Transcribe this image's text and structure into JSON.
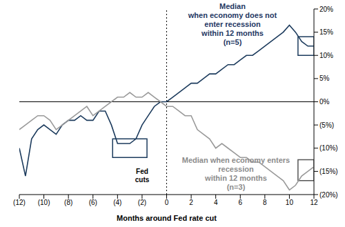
{
  "chart_data": {
    "type": "line",
    "x_label": "Months around Fed rate cut",
    "x": [
      -12,
      -11.5,
      -11,
      -10.5,
      -10,
      -9.5,
      -9,
      -8.5,
      -8,
      -7.5,
      -7,
      -6.5,
      -6,
      -5.5,
      -5,
      -4.5,
      -4,
      -3.5,
      -3,
      -2.5,
      -2,
      -1.5,
      -1,
      -0.5,
      0,
      0.5,
      1,
      1.5,
      2,
      2.5,
      3,
      3.5,
      4,
      4.5,
      5,
      5.5,
      6,
      6.5,
      7,
      7.5,
      8,
      8.5,
      9,
      9.5,
      10,
      10.5,
      11,
      11.5,
      12
    ],
    "series": [
      {
        "name": "Median when economy does not enter recession within 12 months (n=5)",
        "color": "#1b3a5c",
        "values": [
          -10,
          -16,
          -8,
          -6,
          -5,
          -6,
          -7,
          -5,
          -4,
          -4,
          -3,
          -4,
          -4,
          -2,
          -2,
          -5,
          -9,
          -9,
          -9,
          -8,
          -5,
          -3,
          -1,
          0,
          0,
          1,
          2,
          3,
          4,
          4,
          5,
          6,
          6,
          7,
          8,
          8,
          9,
          10,
          10,
          11,
          12,
          13,
          14,
          15,
          16.5,
          15,
          13,
          12,
          12
        ]
      },
      {
        "name": "Median when economy enters recession within 12 months (n=3)",
        "color": "#999999",
        "values": [
          -6,
          -5,
          -4,
          -3,
          -3,
          -4,
          -6,
          -5,
          -4,
          -3,
          -2,
          -1,
          -3,
          -2,
          -1,
          0,
          1,
          1,
          2,
          1,
          1,
          2,
          1,
          0,
          -1,
          -1,
          -2,
          -3,
          -3,
          -6,
          -7,
          -8,
          -10,
          -9,
          -10,
          -11,
          -12,
          -12,
          -13,
          -13,
          -14,
          -15,
          -16,
          -17,
          -19,
          -18,
          -16,
          -15,
          -14
        ]
      }
    ],
    "xlim": [
      -12,
      12
    ],
    "xticks": [
      {
        "value": -12,
        "label": "(12)"
      },
      {
        "value": -10,
        "label": "(10)"
      },
      {
        "value": -8,
        "label": "(8)"
      },
      {
        "value": -6,
        "label": "(6)"
      },
      {
        "value": -4,
        "label": "(4)"
      },
      {
        "value": -2,
        "label": "(2)"
      },
      0,
      2,
      4,
      6,
      8,
      10,
      12
    ],
    "ylim": [
      -20,
      20
    ],
    "yticks": [
      {
        "value": -20,
        "label": "(20%)"
      },
      {
        "value": -15,
        "label": "(15%)"
      },
      {
        "value": -10,
        "label": "(10%)"
      },
      {
        "value": -5,
        "label": "(5%)"
      },
      {
        "value": 0,
        "label": "0%"
      },
      {
        "value": 5,
        "label": "5%"
      },
      {
        "value": 10,
        "label": "10%"
      },
      {
        "value": 15,
        "label": "15%"
      },
      {
        "value": 20,
        "label": "20%"
      }
    ],
    "grid": false,
    "reference_lines": [
      {
        "axis": "y",
        "value": 0,
        "line_style": "solid"
      },
      {
        "axis": "x",
        "value": 0,
        "label": "Fed cuts",
        "line_style": "dashed"
      }
    ],
    "highlight_boxes": [
      {
        "x": [
          -4.4,
          -1.6
        ],
        "y": [
          -12,
          -8
        ],
        "color": "#1b3a5c"
      },
      {
        "x": [
          10.7,
          12
        ],
        "y": [
          10,
          14
        ],
        "color": "#1b3a5c"
      },
      {
        "x": [
          10.7,
          12
        ],
        "y": [
          -17,
          -12.5
        ],
        "color": "#555555"
      }
    ],
    "annotations": [
      {
        "text": [
          "Median",
          "when economy does not enter recession",
          "within 12 months",
          "(n=5)"
        ],
        "color": "#1f3864"
      },
      {
        "text": [
          "Median when economy enters recession",
          "within 12 months",
          "(n=3)"
        ],
        "color": "#8c8c8c"
      }
    ]
  }
}
